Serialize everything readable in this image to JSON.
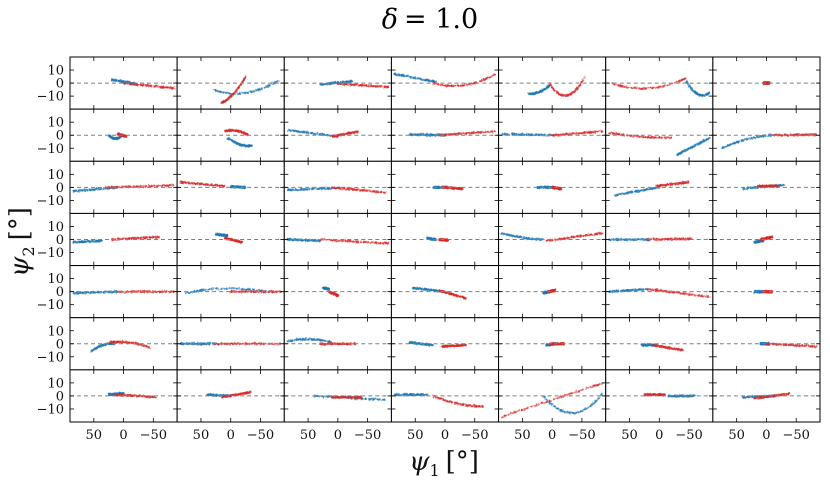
{
  "chart_data": {
    "type": "scatter",
    "title": "δ = 1.0",
    "title_symbol": "δ",
    "title_value": "= 1.0",
    "xlabel": "ψ",
    "xlabel_sub": "1",
    "xlabel_unit": "[°]",
    "ylabel": "ψ",
    "ylabel_sub": "2",
    "ylabel_unit": "[°]",
    "grid_rows": 7,
    "grid_cols": 7,
    "xlim": [
      90,
      -90
    ],
    "ylim": [
      -20,
      20
    ],
    "xticks": [
      50,
      0,
      -50
    ],
    "xtick_labels": [
      "50",
      "0",
      "−50"
    ],
    "yticks": [
      10,
      0,
      -10
    ],
    "ytick_labels": [
      "10",
      "0",
      "−10"
    ],
    "reference_line": {
      "y": 0,
      "style": "dashed",
      "color": "#7f7f7f"
    },
    "series": [
      {
        "name": "blue",
        "color": "#1f77b4"
      },
      {
        "name": "red",
        "color": "#d62728"
      }
    ],
    "panels": [
      [
        {
          "b": [
            [
              20,
              2.5,
              -20,
              -0.5,
              0
            ]
          ],
          "r": [
            [
              0,
              0,
              -85,
              -4,
              0
            ]
          ]
        },
        {
          "b": [
            [
              30,
              -5,
              -80,
              2,
              -6
            ]
          ],
          "r": [
            [
              15,
              -15,
              -25,
              5,
              -3
            ]
          ]
        },
        {
          "b": [
            [
              30,
              -1,
              -25,
              1.5,
              0
            ]
          ],
          "r": [
            [
              0,
              -0.5,
              -85,
              -3,
              0
            ]
          ]
        },
        {
          "b": [
            [
              85,
              7,
              15,
              1,
              0
            ]
          ],
          "r": [
            [
              20,
              0,
              -85,
              7,
              -5
            ]
          ]
        },
        {
          "b": [
            [
              40,
              -8,
              5,
              -2,
              -2
            ]
          ],
          "r": [
            [
              5,
              0,
              -55,
              5,
              -12
            ]
          ]
        },
        {
          "b": [
            [
              -45,
              2,
              -85,
              -7,
              -6
            ]
          ],
          "r": [
            [
              80,
              0,
              -45,
              4,
              -6
            ]
          ]
        },
        {
          "b": [
            [
              5,
              0,
              -5,
              0,
              0
            ]
          ],
          "r": [
            [
              5,
              0,
              -5,
              0,
              0
            ]
          ]
        }
      ],
      [
        {
          "b": [
            [
              25,
              0,
              5,
              -1,
              -2
            ]
          ],
          "r": [
            [
              10,
              1,
              -5,
              -1,
              0
            ]
          ]
        },
        {
          "b": [
            [
              5,
              -2,
              -35,
              -8,
              -2
            ]
          ],
          "r": [
            [
              10,
              3,
              -30,
              0,
              2
            ]
          ]
        },
        {
          "b": [
            [
              85,
              4,
              0,
              -1,
              0
            ]
          ],
          "r": [
            [
              10,
              -1,
              -35,
              3,
              0
            ]
          ]
        },
        {
          "b": [
            [
              60,
              0.5,
              0,
              0,
              0
            ]
          ],
          "r": [
            [
              10,
              0,
              -85,
              3,
              0
            ]
          ]
        },
        {
          "b": [
            [
              85,
              1,
              0,
              0,
              0
            ]
          ],
          "r": [
            [
              0,
              0,
              -85,
              3,
              0
            ]
          ]
        },
        {
          "b": [
            [
              -30,
              -15,
              -85,
              -2,
              0
            ]
          ],
          "r": [
            [
              85,
              2,
              -20,
              -2,
              -1
            ]
          ]
        },
        {
          "b": [
            [
              75,
              -10,
              -10,
              0,
              2
            ]
          ],
          "r": [
            [
              -10,
              0,
              -85,
              0.5,
              0
            ]
          ]
        }
      ],
      [
        {
          "b": [
            [
              85,
              -3,
              10,
              0,
              0
            ]
          ],
          "r": [
            [
              30,
              0,
              -85,
              1.5,
              0
            ]
          ]
        },
        {
          "b": [
            [
              0,
              0.5,
              -25,
              0,
              0
            ]
          ],
          "r": [
            [
              85,
              4,
              10,
              1,
              0
            ]
          ]
        },
        {
          "b": [
            [
              85,
              -2,
              0,
              -0.5,
              0
            ]
          ],
          "r": [
            [
              10,
              0,
              -80,
              -4,
              0
            ]
          ]
        },
        {
          "b": [
            [
              20,
              0,
              -5,
              0,
              0
            ]
          ],
          "r": [
            [
              5,
              0,
              -30,
              -1,
              0
            ]
          ]
        },
        {
          "b": [
            [
              25,
              0,
              -5,
              0,
              0
            ]
          ],
          "r": [
            [
              0,
              0,
              -15,
              -1,
              0
            ]
          ]
        },
        {
          "b": [
            [
              75,
              -6,
              0,
              0,
              0
            ]
          ],
          "r": [
            [
              5,
              1,
              -50,
              4,
              0
            ]
          ]
        },
        {
          "b": [
            [
              40,
              -1,
              -30,
              2,
              0
            ]
          ],
          "r": [
            [
              15,
              1,
              -20,
              1,
              0
            ]
          ]
        }
      ],
      [
        {
          "b": [
            [
              85,
              -2,
              35,
              -1,
              0
            ]
          ],
          "r": [
            [
              20,
              0,
              -60,
              2,
              0
            ]
          ]
        },
        {
          "b": [
            [
              25,
              4,
              5,
              3,
              0
            ]
          ],
          "r": [
            [
              10,
              1,
              -20,
              -2,
              0
            ]
          ]
        },
        {
          "b": [
            [
              85,
              0,
              30,
              -1,
              0
            ]
          ],
          "r": [
            [
              30,
              0,
              -85,
              -3,
              0
            ]
          ]
        },
        {
          "b": [
            [
              30,
              1,
              15,
              0,
              0
            ]
          ],
          "r": [
            [
              10,
              0,
              -5,
              -0.5,
              0
            ]
          ]
        },
        {
          "b": [
            [
              85,
              5,
              15,
              0,
              -1
            ]
          ],
          "r": [
            [
              10,
              -1,
              -85,
              5,
              0
            ]
          ]
        },
        {
          "b": [
            [
              85,
              0,
              15,
              0,
              0
            ]
          ],
          "r": [
            [
              20,
              0,
              -55,
              0.5,
              0
            ]
          ]
        },
        {
          "b": [
            [
              20,
              -2,
              5,
              -1,
              0
            ]
          ],
          "r": [
            [
              10,
              0,
              -10,
              2,
              0
            ]
          ]
        }
      ],
      [
        {
          "b": [
            [
              85,
              -1,
              10,
              0,
              0
            ]
          ],
          "r": [
            [
              10,
              0,
              -85,
              0,
              0
            ]
          ]
        },
        {
          "b": [
            [
              75,
              -1,
              -60,
              0,
              3
            ]
          ],
          "r": [
            [
              0,
              0,
              -85,
              0,
              0
            ]
          ]
        },
        {
          "b": [
            [
              25,
              3,
              15,
              2,
              0
            ]
          ],
          "r": [
            [
              15,
              0,
              0,
              -3,
              0
            ]
          ]
        },
        {
          "b": [
            [
              55,
              3,
              0,
              0,
              0
            ]
          ],
          "r": [
            [
              10,
              1,
              -35,
              -5,
              0
            ]
          ]
        },
        {
          "b": [
            [
              15,
              -1,
              5,
              0,
              0
            ]
          ],
          "r": [
            [
              5,
              0,
              -5,
              1,
              0
            ]
          ]
        },
        {
          "b": [
            [
              85,
              0,
              20,
              2,
              0
            ]
          ],
          "r": [
            [
              20,
              2,
              -85,
              -4,
              0
            ]
          ]
        },
        {
          "b": [
            [
              20,
              0,
              5,
              0,
              0
            ]
          ],
          "r": [
            [
              5,
              0,
              -10,
              0,
              0
            ]
          ]
        }
      ],
      [
        {
          "b": [
            [
              55,
              -6,
              15,
              0,
              2
            ]
          ],
          "r": [
            [
              25,
              1,
              -45,
              -3,
              2
            ]
          ]
        },
        {
          "b": [
            [
              85,
              0,
              25,
              0,
              0
            ]
          ],
          "r": [
            [
              30,
              0,
              -85,
              0,
              0
            ]
          ]
        },
        {
          "b": [
            [
              85,
              2,
              10,
              1,
              2
            ]
          ],
          "r": [
            [
              30,
              0,
              -30,
              0,
              0
            ]
          ]
        },
        {
          "b": [
            [
              60,
              1,
              20,
              -1,
              0
            ]
          ],
          "r": [
            [
              5,
              -2,
              -35,
              -1,
              0
            ]
          ]
        },
        {
          "b": [
            [
              10,
              -1,
              -5,
              0,
              0
            ]
          ],
          "r": [
            [
              5,
              0,
              -20,
              0,
              0
            ]
          ]
        },
        {
          "b": [
            [
              30,
              -1,
              5,
              -1,
              0
            ]
          ],
          "r": [
            [
              10,
              -1,
              -40,
              -5,
              0
            ]
          ]
        },
        {
          "b": [
            [
              10,
              0,
              -5,
              0,
              0
            ]
          ],
          "r": [
            [
              0,
              0,
              -85,
              -2,
              0
            ]
          ]
        }
      ],
      [
        {
          "b": [
            [
              25,
              1,
              0,
              2,
              0
            ]
          ],
          "r": [
            [
              15,
              1,
              -55,
              -1,
              0
            ]
          ]
        },
        {
          "b": [
            [
              40,
              1,
              0,
              0,
              0
            ]
          ],
          "r": [
            [
              15,
              -1,
              -35,
              3,
              0
            ]
          ]
        },
        {
          "b": [
            [
              40,
              0,
              -80,
              -3,
              0
            ]
          ],
          "r": [
            [
              10,
              -1,
              -40,
              -1,
              0
            ]
          ]
        },
        {
          "b": [
            [
              85,
              1,
              30,
              1,
              0
            ]
          ],
          "r": [
            [
              20,
              0,
              -65,
              -8,
              -2
            ]
          ]
        },
        {
          "b": [
            [
              15,
              0,
              -85,
              2,
              -14
            ]
          ],
          "r": [
            [
              85,
              -16,
              -85,
              10,
              0
            ]
          ]
        },
        {
          "b": [
            [
              -15,
              0,
              -60,
              0,
              0
            ]
          ],
          "r": [
            [
              25,
              1,
              -10,
              1,
              0
            ]
          ]
        },
        {
          "b": [
            [
              40,
              -1,
              -15,
              0,
              0
            ]
          ],
          "r": [
            [
              20,
              -2,
              -40,
              2,
              0
            ]
          ]
        }
      ]
    ]
  }
}
